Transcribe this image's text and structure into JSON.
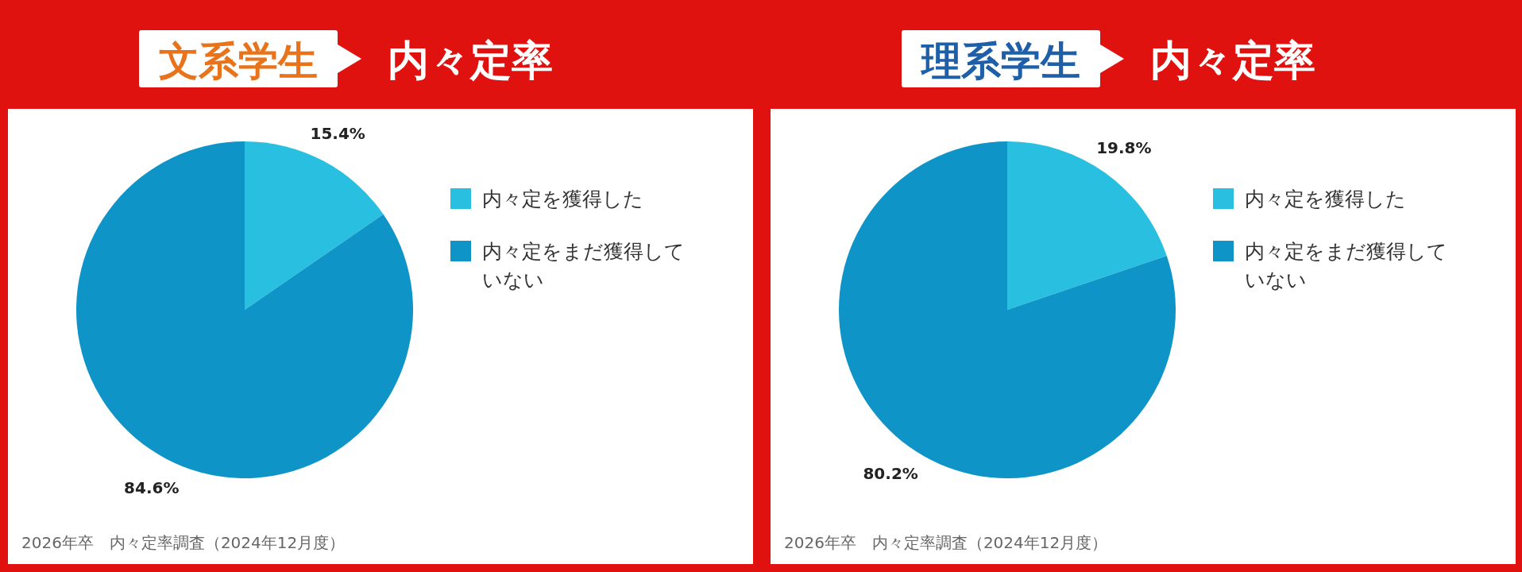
{
  "chart_data": [
    {
      "type": "pie",
      "title": "文系学生",
      "subtitle": "内々定率",
      "categories": [
        "内々定を獲得した",
        "内々定をまだ獲得していない"
      ],
      "values": [
        15.4,
        84.6
      ],
      "colors": [
        "#29bfe0",
        "#0f94c8"
      ],
      "value_labels": [
        "15.4%",
        "84.6%"
      ],
      "legend": "right",
      "annotations": [
        "2026年卒　内々定率調査（2024年12月度）"
      ]
    },
    {
      "type": "pie",
      "title": "理系学生",
      "subtitle": "内々定率",
      "categories": [
        "内々定を獲得した",
        "内々定をまだ獲得していない"
      ],
      "values": [
        19.8,
        80.2
      ],
      "colors": [
        "#29bfe0",
        "#0f94c8"
      ],
      "value_labels": [
        "19.8%",
        "80.2%"
      ],
      "legend": "right",
      "annotations": [
        "2026年卒　内々定率調査（2024年12月度）"
      ]
    }
  ]
}
